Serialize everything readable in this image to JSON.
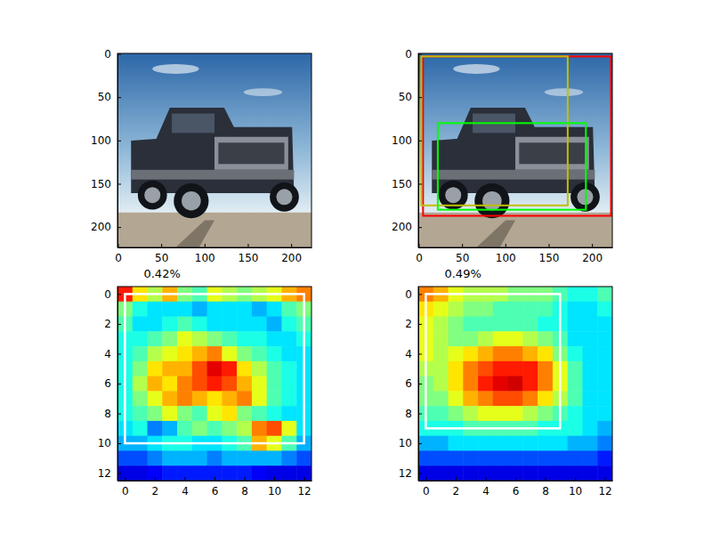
{
  "chart_data": [
    {
      "type": "image",
      "xlim": [
        -0.5,
        223.5
      ],
      "ylim": [
        223.5,
        -0.5
      ],
      "xticks": [
        0,
        50,
        100,
        150,
        200
      ],
      "yticks": [
        0,
        50,
        100,
        150,
        200
      ]
    },
    {
      "type": "image",
      "xlim": [
        -0.5,
        223.5
      ],
      "ylim": [
        223.5,
        -0.5
      ],
      "xticks": [
        0,
        50,
        100,
        150,
        200
      ],
      "yticks": [
        0,
        50,
        100,
        150,
        200
      ],
      "boxes": [
        {
          "x0": 5,
          "y0": 3,
          "x1": 222,
          "y1": 187,
          "color": "#ff0000"
        },
        {
          "x0": 3,
          "y0": 3,
          "x1": 172,
          "y1": 175,
          "color": "#bfbf00"
        },
        {
          "x0": 22,
          "y0": 80,
          "x1": 193,
          "y1": 180,
          "color": "#00ff00"
        }
      ]
    },
    {
      "type": "heatmap",
      "title": "0.42%",
      "xlim": [
        -0.5,
        12.5
      ],
      "ylim": [
        12.5,
        -0.5
      ],
      "xticks": [
        0,
        2,
        4,
        6,
        8,
        10,
        12
      ],
      "yticks": [
        0,
        2,
        4,
        6,
        8,
        10,
        12
      ],
      "color_range": [
        0,
        1
      ],
      "cells": [
        [
          0.85,
          0.65,
          0.55,
          0.7,
          0.5,
          0.45,
          0.6,
          0.55,
          0.5,
          0.55,
          0.6,
          0.7,
          0.75
        ],
        [
          0.5,
          0.4,
          0.35,
          0.35,
          0.35,
          0.3,
          0.35,
          0.35,
          0.35,
          0.3,
          0.35,
          0.45,
          0.5
        ],
        [
          0.45,
          0.35,
          0.35,
          0.4,
          0.45,
          0.4,
          0.35,
          0.35,
          0.35,
          0.35,
          0.3,
          0.4,
          0.45
        ],
        [
          0.4,
          0.4,
          0.45,
          0.5,
          0.6,
          0.55,
          0.5,
          0.45,
          0.4,
          0.4,
          0.35,
          0.35,
          0.4
        ],
        [
          0.4,
          0.45,
          0.55,
          0.6,
          0.65,
          0.7,
          0.75,
          0.6,
          0.5,
          0.45,
          0.4,
          0.35,
          0.35
        ],
        [
          0.4,
          0.5,
          0.65,
          0.7,
          0.7,
          0.8,
          0.9,
          0.85,
          0.65,
          0.55,
          0.45,
          0.4,
          0.35
        ],
        [
          0.4,
          0.55,
          0.7,
          0.65,
          0.75,
          0.8,
          0.85,
          0.8,
          0.7,
          0.6,
          0.45,
          0.4,
          0.35
        ],
        [
          0.4,
          0.5,
          0.6,
          0.7,
          0.75,
          0.7,
          0.65,
          0.7,
          0.75,
          0.6,
          0.45,
          0.4,
          0.35
        ],
        [
          0.4,
          0.45,
          0.5,
          0.6,
          0.5,
          0.45,
          0.6,
          0.65,
          0.5,
          0.45,
          0.4,
          0.35,
          0.35
        ],
        [
          0.35,
          0.4,
          0.25,
          0.3,
          0.45,
          0.5,
          0.45,
          0.5,
          0.55,
          0.75,
          0.8,
          0.6,
          0.35
        ],
        [
          0.3,
          0.3,
          0.35,
          0.4,
          0.4,
          0.35,
          0.35,
          0.4,
          0.45,
          0.7,
          0.6,
          0.45,
          0.3
        ],
        [
          0.2,
          0.2,
          0.25,
          0.3,
          0.3,
          0.3,
          0.25,
          0.3,
          0.3,
          0.3,
          0.3,
          0.25,
          0.2
        ],
        [
          0.1,
          0.1,
          0.12,
          0.15,
          0.15,
          0.15,
          0.15,
          0.15,
          0.15,
          0.12,
          0.1,
          0.1,
          0.1
        ]
      ],
      "boxes": [
        {
          "x0": 0,
          "y0": 0,
          "x1": 12,
          "y1": 10,
          "color": "#ffffff"
        }
      ]
    },
    {
      "type": "heatmap",
      "title": "0.49%",
      "xlim": [
        -0.5,
        12.5
      ],
      "ylim": [
        12.5,
        -0.5
      ],
      "xticks": [
        0,
        2,
        4,
        6,
        8,
        10,
        12
      ],
      "yticks": [
        0,
        2,
        4,
        6,
        8,
        10,
        12
      ],
      "color_range": [
        0,
        1
      ],
      "cells": [
        [
          0.75,
          0.7,
          0.6,
          0.55,
          0.55,
          0.55,
          0.5,
          0.5,
          0.5,
          0.45,
          0.4,
          0.4,
          0.45
        ],
        [
          0.65,
          0.6,
          0.55,
          0.5,
          0.5,
          0.45,
          0.45,
          0.45,
          0.45,
          0.4,
          0.35,
          0.35,
          0.4
        ],
        [
          0.6,
          0.55,
          0.5,
          0.45,
          0.45,
          0.45,
          0.45,
          0.45,
          0.4,
          0.4,
          0.35,
          0.35,
          0.35
        ],
        [
          0.6,
          0.55,
          0.5,
          0.5,
          0.55,
          0.6,
          0.6,
          0.55,
          0.5,
          0.45,
          0.35,
          0.35,
          0.35
        ],
        [
          0.6,
          0.55,
          0.6,
          0.65,
          0.7,
          0.75,
          0.75,
          0.7,
          0.65,
          0.5,
          0.4,
          0.35,
          0.35
        ],
        [
          0.55,
          0.55,
          0.65,
          0.75,
          0.8,
          0.85,
          0.85,
          0.85,
          0.75,
          0.6,
          0.45,
          0.35,
          0.35
        ],
        [
          0.5,
          0.55,
          0.65,
          0.75,
          0.85,
          0.9,
          0.92,
          0.85,
          0.75,
          0.6,
          0.45,
          0.35,
          0.35
        ],
        [
          0.5,
          0.5,
          0.6,
          0.7,
          0.75,
          0.8,
          0.8,
          0.75,
          0.65,
          0.55,
          0.45,
          0.35,
          0.35
        ],
        [
          0.45,
          0.45,
          0.5,
          0.55,
          0.6,
          0.6,
          0.6,
          0.55,
          0.5,
          0.45,
          0.4,
          0.35,
          0.35
        ],
        [
          0.4,
          0.4,
          0.4,
          0.45,
          0.45,
          0.45,
          0.45,
          0.45,
          0.4,
          0.4,
          0.4,
          0.35,
          0.3
        ],
        [
          0.3,
          0.3,
          0.35,
          0.35,
          0.35,
          0.35,
          0.35,
          0.35,
          0.35,
          0.35,
          0.3,
          0.3,
          0.25
        ],
        [
          0.2,
          0.2,
          0.2,
          0.2,
          0.2,
          0.2,
          0.2,
          0.2,
          0.2,
          0.2,
          0.2,
          0.2,
          0.15
        ],
        [
          0.1,
          0.1,
          0.1,
          0.1,
          0.1,
          0.1,
          0.1,
          0.1,
          0.1,
          0.1,
          0.1,
          0.1,
          0.1
        ]
      ],
      "boxes": [
        {
          "x0": 0,
          "y0": 0,
          "x1": 9,
          "y1": 9,
          "color": "#ffffff"
        }
      ]
    }
  ]
}
